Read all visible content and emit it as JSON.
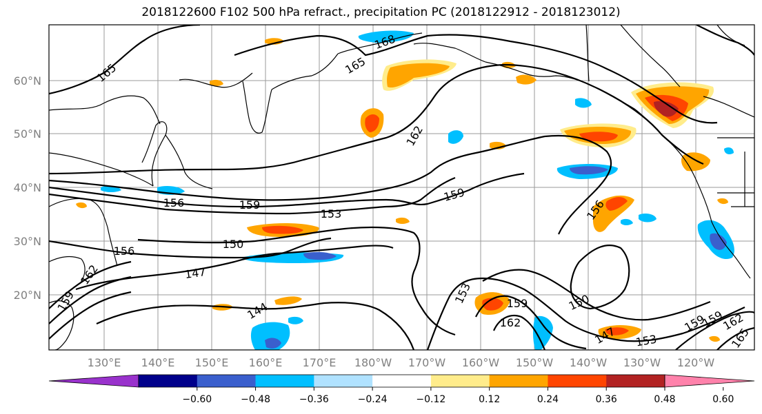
{
  "title": "2018122600 F102 500 hPa refract., precipitation PC (2018122912 - 2018123012)",
  "lat_labels": [
    "60°N",
    "50°N",
    "40°N",
    "30°N",
    "20°N"
  ],
  "lon_labels": [
    "130°E",
    "140°E",
    "150°E",
    "160°E",
    "170°E",
    "180°W",
    "170°W",
    "160°W",
    "150°W",
    "140°W",
    "130°W",
    "120°W"
  ],
  "colorbar": {
    "colors": [
      "#9932cc",
      "#00008b",
      "#3a5fcd",
      "#00bfff",
      "#b0e2ff",
      "#ffffff",
      "#ffec8b",
      "#ffa500",
      "#ff4500",
      "#b22222",
      "#ff82ab"
    ],
    "tick_labels": [
      "−0.60",
      "−0.48",
      "−0.36",
      "−0.24",
      "−0.12",
      "0.12",
      "0.24",
      "0.36",
      "0.48",
      "0.60"
    ]
  },
  "contour_labels": [
    "165",
    "165",
    "168",
    "162",
    "159",
    "156",
    "159",
    "153",
    "150",
    "156",
    "147",
    "162",
    "159",
    "144",
    "153",
    "159",
    "162",
    "150",
    "156",
    "147",
    "153",
    "159",
    "159",
    "162",
    "165"
  ]
}
